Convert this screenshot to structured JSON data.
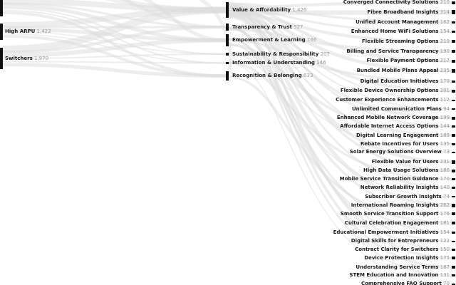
{
  "chart_data": {
    "type": "sankey",
    "title": "",
    "orientation": "horizontal",
    "legend": "none",
    "grid": false,
    "note_cropped_view": "diagram is cropped at top and bottom edges; leftmost top node bar visible without label, bottom right row partially cut",
    "stages": [
      {
        "name": "segments",
        "nodes": [
          {
            "label": "",
            "value": null
          },
          {
            "label": "High ARPU",
            "value": 1422
          },
          {
            "label": "Switchers",
            "value": 1970
          }
        ]
      },
      {
        "name": "themes",
        "nodes": [
          {
            "label": "Value & Affordability",
            "value": 1426
          },
          {
            "label": "Transparency & Trust",
            "value": 527
          },
          {
            "label": "Empowerment & Learning",
            "value": 766
          },
          {
            "label": "Sustainability & Responsibility",
            "value": 207
          },
          {
            "label": "Information & Understanding",
            "value": 146
          },
          {
            "label": "Recognition & Belonging",
            "value": 633
          }
        ]
      },
      {
        "name": "topics",
        "nodes": [
          {
            "label": "Converged Connectivity Solutions",
            "value": 210
          },
          {
            "label": "Fibre Broadband Insights",
            "value": 314
          },
          {
            "label": "Unified Account Management",
            "value": 162
          },
          {
            "label": "Enhanced Home WiFi Solutions",
            "value": 154
          },
          {
            "label": "Flexible Streaming Options",
            "value": 210
          },
          {
            "label": "Billing and Service Transparency",
            "value": 190
          },
          {
            "label": "Flexible Payment Options",
            "value": 217
          },
          {
            "label": "Bundled Mobile Plans Appeal",
            "value": 235
          },
          {
            "label": "Digital Education Initiatives",
            "value": 170
          },
          {
            "label": "Flexible Device Ownership Options",
            "value": 201
          },
          {
            "label": "Customer Experience Enhancements",
            "value": 112
          },
          {
            "label": "Unlimited Communication Plans",
            "value": 94
          },
          {
            "label": "Enhanced Mobile Network Coverage",
            "value": 199
          },
          {
            "label": "Affordable Internet Access Options",
            "value": 144
          },
          {
            "label": "Digital Learning Engagement",
            "value": 189
          },
          {
            "label": "Rebate Incentives for Users",
            "value": 135
          },
          {
            "label": "Solar Energy Solutions Overview",
            "value": 73
          },
          {
            "label": "Flexible Value for Users",
            "value": 231
          },
          {
            "label": "High Data Usage Solutions",
            "value": 186
          },
          {
            "label": "Mobile Service Transition Guidance",
            "value": 170
          },
          {
            "label": "Network Reliability Insights",
            "value": 140
          },
          {
            "label": "Subscriber Growth Insights",
            "value": 74
          },
          {
            "label": "International Roaming Insights",
            "value": 262
          },
          {
            "label": "Smooth Service Transition Support",
            "value": 176
          },
          {
            "label": "Cultural Celebration Engagement",
            "value": 181
          },
          {
            "label": "Educational Empowerment Initiatives",
            "value": 154
          },
          {
            "label": "Digital Skills for Entrepreneurs",
            "value": 122
          },
          {
            "label": "Contract Clarity for Switchers",
            "value": 150
          },
          {
            "label": "Device Protection Insights",
            "value": 175
          },
          {
            "label": "Understanding Service Terms",
            "value": 187
          },
          {
            "label": "STEM Education and Innovation",
            "value": 131
          },
          {
            "label": "Comprehensive FAQ Support",
            "value": 70
          }
        ]
      }
    ]
  },
  "colors": {
    "background": "#ffffff",
    "node_bar": "#111111",
    "label_text": "#1a1a1a",
    "value_text": "#969696",
    "flow": "#dcdcdc"
  }
}
